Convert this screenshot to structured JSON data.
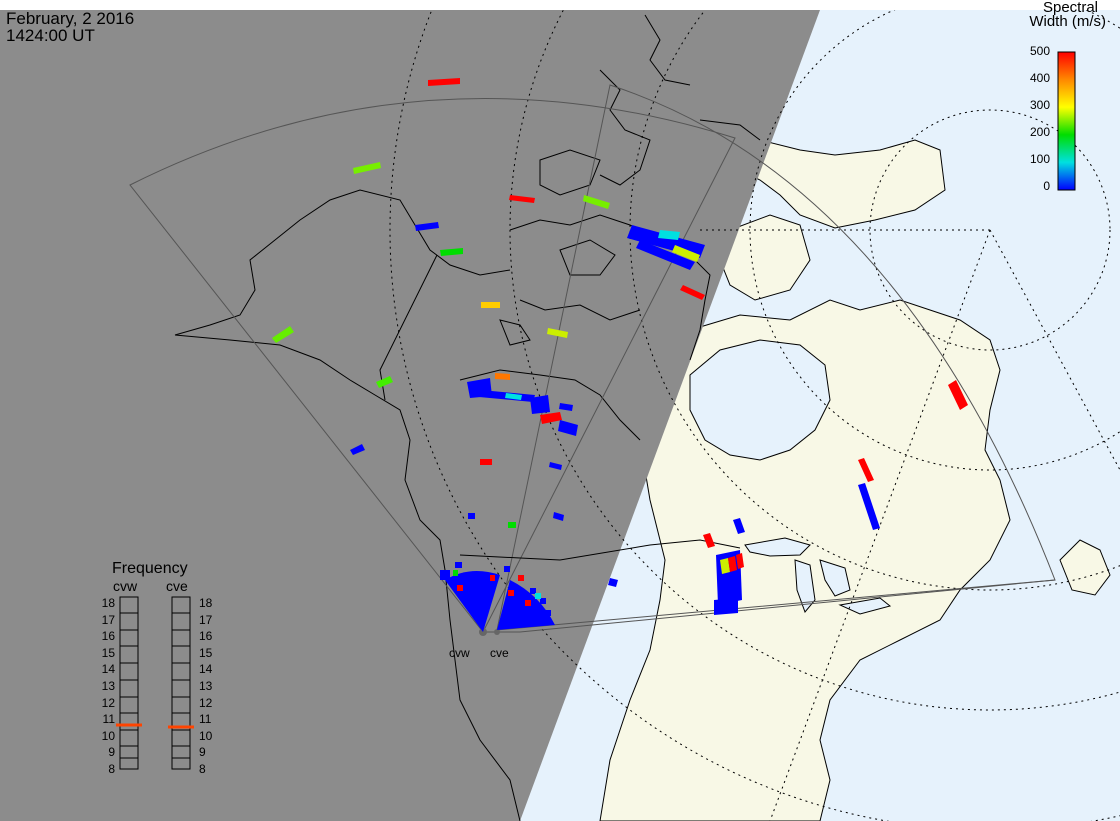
{
  "header": {
    "date": "February, 2 2016",
    "time": "1424:00 UT"
  },
  "legend": {
    "title_line1": "Spectral",
    "title_line2": "Width (m/s)",
    "ticks": [
      "500",
      "400",
      "300",
      "200",
      "100",
      "0"
    ],
    "colors": [
      "#ff0000",
      "#ff8800",
      "#ffff00",
      "#00dd00",
      "#00e0e0",
      "#0000ff"
    ]
  },
  "frequency_panel": {
    "title": "Frequency",
    "radars": [
      "cvw",
      "cve"
    ],
    "levels": [
      "18",
      "17",
      "16",
      "15",
      "14",
      "13",
      "12",
      "11",
      "10",
      "9",
      "8"
    ],
    "indicator_color": "#ff4400"
  },
  "sites": [
    "cvw",
    "cve"
  ],
  "colors": {
    "night_shade": "#8c8c8c",
    "land_day": "#f8f8e6",
    "ocean_day": "#e6f2fc"
  }
}
